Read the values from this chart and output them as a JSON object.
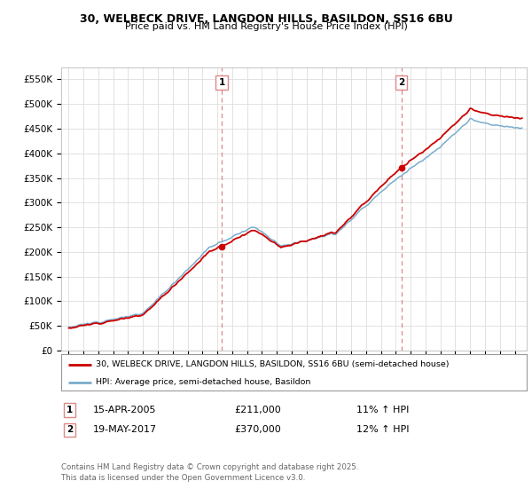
{
  "title_line1": "30, WELBECK DRIVE, LANGDON HILLS, BASILDON, SS16 6BU",
  "title_line2": "Price paid vs. HM Land Registry's House Price Index (HPI)",
  "ylabel_ticks": [
    "£0",
    "£50K",
    "£100K",
    "£150K",
    "£200K",
    "£250K",
    "£300K",
    "£350K",
    "£400K",
    "£450K",
    "£500K",
    "£550K"
  ],
  "ytick_values": [
    0,
    50000,
    100000,
    150000,
    200000,
    250000,
    300000,
    350000,
    400000,
    450000,
    500000,
    550000
  ],
  "xlim": [
    1994.5,
    2025.8
  ],
  "ylim": [
    0,
    575000
  ],
  "sale1_year": 2005.29,
  "sale1_price": 211000,
  "sale2_year": 2017.38,
  "sale2_price": 370000,
  "line1_color": "#cc0000",
  "line2_color": "#7aadcc",
  "annotation1_date": "15-APR-2005",
  "annotation1_price": "£211,000",
  "annotation1_hpi": "11% ↑ HPI",
  "annotation2_date": "19-MAY-2017",
  "annotation2_price": "£370,000",
  "annotation2_hpi": "12% ↑ HPI",
  "legend_line1": "30, WELBECK DRIVE, LANGDON HILLS, BASILDON, SS16 6BU (semi-detached house)",
  "legend_line2": "HPI: Average price, semi-detached house, Basildon",
  "footer": "Contains HM Land Registry data © Crown copyright and database right 2025.\nThis data is licensed under the Open Government Licence v3.0.",
  "background_color": "#ffffff",
  "grid_color": "#dddddd",
  "vline_color": "#dd8888"
}
